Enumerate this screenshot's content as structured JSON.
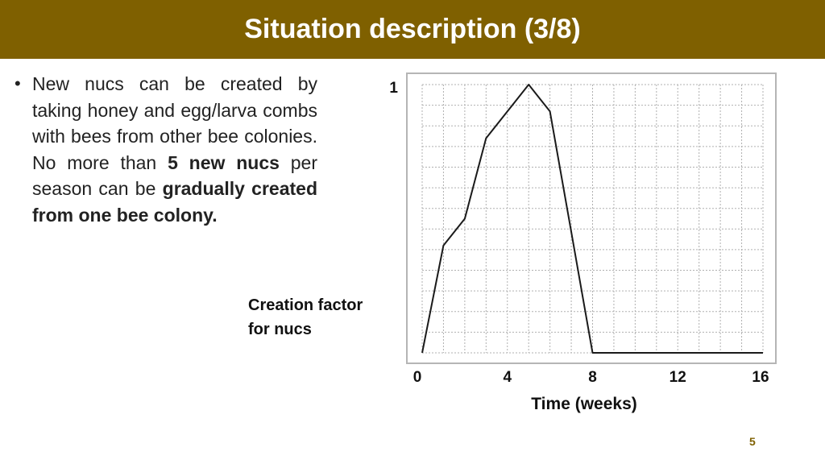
{
  "slide": {
    "title": "Situation description (3/8)",
    "page_number": "5",
    "bullet": {
      "t1": "New nucs can be created by taking honey and egg/larva combs with bees from other bee colonies. No more than ",
      "b1": "5 new nucs",
      "t2": " per season can be ",
      "b2": "gradually created from one bee colony."
    }
  },
  "colors": {
    "title_bar": "#7f6000",
    "title_text": "#ffffff",
    "line": "#1a1a1a",
    "grid": "#b0b0b0"
  },
  "chart_data": {
    "type": "line",
    "ylabel_lines": [
      "Creation factor",
      "for nucs"
    ],
    "xlabel": "Time (weeks)",
    "x_ticks": [
      "0",
      "4",
      "8",
      "12",
      "16"
    ],
    "y_ticks": [
      "1"
    ],
    "xlim": [
      0,
      16
    ],
    "ylim": [
      0,
      1
    ],
    "grid": true,
    "series": [
      {
        "x": [
          0,
          1,
          2,
          3,
          4,
          5,
          6,
          7,
          8,
          16
        ],
        "y": [
          0,
          0.4,
          0.5,
          0.8,
          0.9,
          1.0,
          0.9,
          0.45,
          0,
          0
        ]
      }
    ]
  }
}
